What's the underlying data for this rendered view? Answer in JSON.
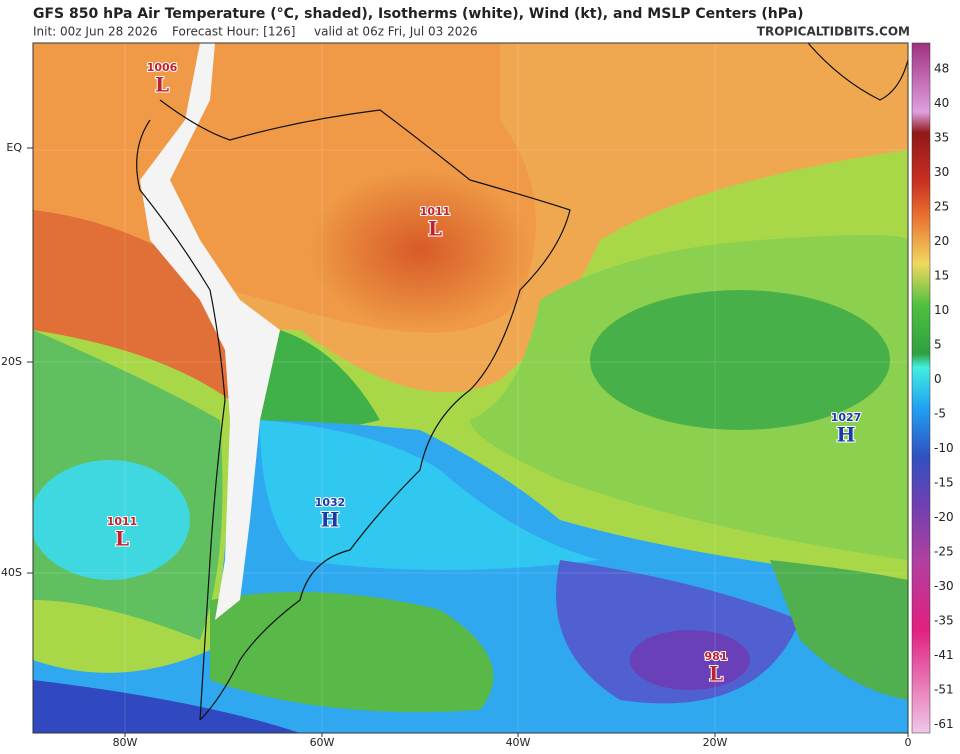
{
  "header": {
    "title": "GFS 850 hPa Air Temperature (°C, shaded), Isotherms (white), Wind (kt), and MSLP Centers (hPa)",
    "init": "Init: 00z Jun 28 2026",
    "forecast_hour": "Forecast Hour: [126]",
    "valid": "valid at 06z Fri, Jul 03 2026",
    "site": "TROPICALTIDBITS.COM"
  },
  "map": {
    "latitude_labels": [
      "EQ",
      "20S",
      "40S"
    ],
    "longitude_labels": [
      "80W",
      "60W",
      "40W",
      "20W",
      "0"
    ],
    "pressure_centers": [
      {
        "value": "1006",
        "letter": "L"
      },
      {
        "value": "1011",
        "letter": "L"
      },
      {
        "value": "1027",
        "letter": "H"
      },
      {
        "value": "1032",
        "letter": "H"
      },
      {
        "value": "1011",
        "letter": "L"
      },
      {
        "value": "981",
        "letter": "L"
      }
    ]
  },
  "colorbar": {
    "ticks": [
      48,
      40,
      35,
      30,
      25,
      20,
      15,
      10,
      5,
      0,
      -5,
      -10,
      -15,
      -20,
      -25,
      -30,
      -35,
      -41,
      -51,
      -61
    ]
  }
}
